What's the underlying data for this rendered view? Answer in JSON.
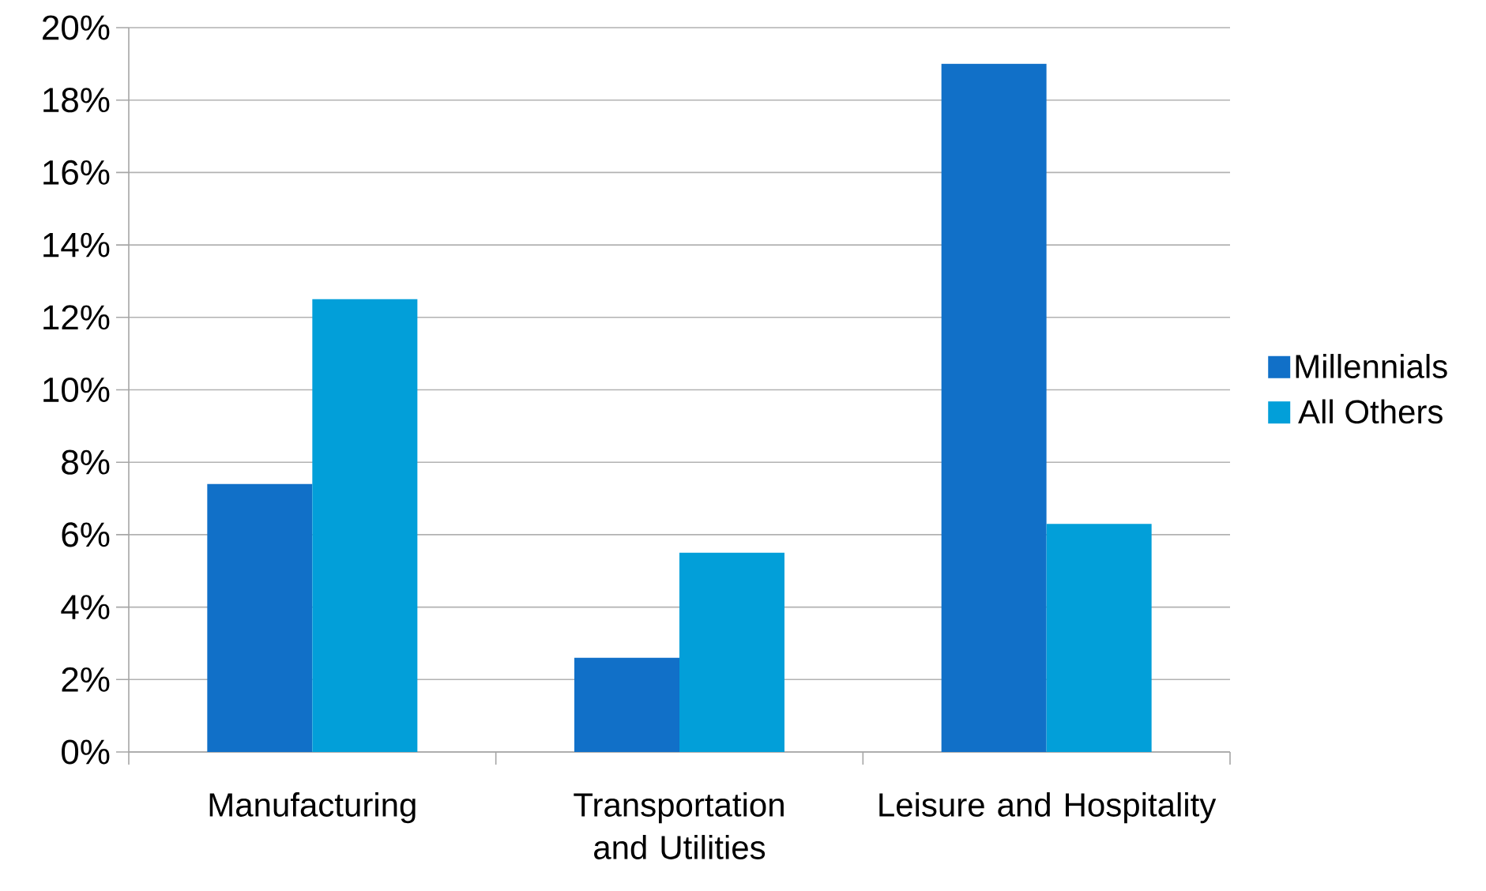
{
  "chart_data": {
    "type": "bar",
    "categories": [
      "Manufacturing",
      "Transportation and Utilities",
      "Leisure and Hospitality"
    ],
    "series": [
      {
        "name": "Millennials",
        "color": "#1170c8",
        "values": [
          7.4,
          2.6,
          19.0
        ]
      },
      {
        "name": "All Others",
        "color": "#029fd9",
        "values": [
          12.5,
          5.5,
          6.3
        ]
      }
    ],
    "ylim": [
      0,
      20
    ],
    "yticks": [
      {
        "value": 0,
        "label": "0%"
      },
      {
        "value": 2,
        "label": "2%"
      },
      {
        "value": 4,
        "label": "4%"
      },
      {
        "value": 6,
        "label": "6%"
      },
      {
        "value": 8,
        "label": "8%"
      },
      {
        "value": 10,
        "label": "10%"
      },
      {
        "value": 12,
        "label": "12%"
      },
      {
        "value": 14,
        "label": "14%"
      },
      {
        "value": 16,
        "label": "16%"
      },
      {
        "value": 18,
        "label": "18%"
      },
      {
        "value": 20,
        "label": "20%"
      }
    ],
    "grid": "y",
    "legend": "right"
  }
}
